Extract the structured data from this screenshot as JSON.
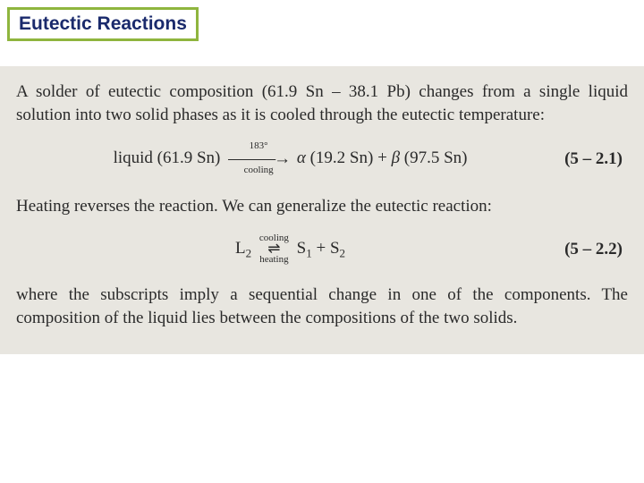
{
  "title": "Eutectic Reactions",
  "colors": {
    "title_border": "#8fb53e",
    "title_text": "#1a2a6c",
    "content_bg": "#e8e6e0",
    "body_text": "#2a2a2a",
    "page_bg": "#ffffff"
  },
  "typography": {
    "title_fontsize": 21,
    "body_fontsize": 19,
    "eq_label_fontsize": 11
  },
  "para1": "A solder of eutectic composition (61.9 Sn – 38.1 Pb) changes from a single liquid solution into two solid phases as it is cooled through the eutectic temperature:",
  "eq1": {
    "lhs": "liquid (61.9 Sn)",
    "temp_label": "183°",
    "bottom_label": "cooling",
    "alpha": "α",
    "alpha_val": "(19.2 Sn)",
    "plus": " + ",
    "beta": "β",
    "beta_val": "(97.5 Sn)",
    "number": "(5 – 2.1)"
  },
  "para2": "Heating reverses the reaction. We can generalize the eutectic reaction:",
  "eq2": {
    "L": "L",
    "L_sub": "2",
    "top_label": "cooling",
    "bottom_label": "heating",
    "S1": "S",
    "S1_sub": "1",
    "plus": " + ",
    "S2": "S",
    "S2_sub": "2",
    "number": "(5 – 2.2)"
  },
  "para3": "where the subscripts imply a sequential change in one of the components. The composition of the liquid lies between the compositions of the two solids."
}
